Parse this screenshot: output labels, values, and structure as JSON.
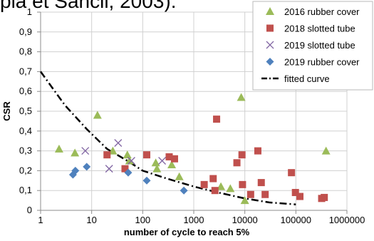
{
  "caption": "pia et Sancil, 2003).",
  "chart_data": {
    "type": "scatter",
    "x_scale": "log",
    "xlim": [
      1,
      1000000
    ],
    "ylim": [
      0,
      1
    ],
    "xlabel": "number of cycle to reach 5%",
    "ylabel": "CSR",
    "x_ticks": [
      "1",
      "10",
      "100",
      "1000",
      "10000",
      "100000",
      "1000000"
    ],
    "x_tick_values": [
      1,
      10,
      100,
      1000,
      10000,
      100000,
      1000000
    ],
    "y_ticks": [
      "0",
      "0,1",
      "0,2",
      "0,3",
      "0,4",
      "0,5",
      "0,6",
      "0,7",
      "0,8",
      "0,9",
      "1"
    ],
    "y_tick_values": [
      0,
      0.1,
      0.2,
      0.3,
      0.4,
      0.5,
      0.6,
      0.7,
      0.8,
      0.9,
      1
    ],
    "grid": true,
    "legend_position": "top-right",
    "series": [
      {
        "name": "2016 rubber cover",
        "marker": "triangle",
        "color": "#9BBB59",
        "points": [
          [
            2.3,
            0.31
          ],
          [
            4.7,
            0.29
          ],
          [
            13,
            0.48
          ],
          [
            26,
            0.3
          ],
          [
            50,
            0.28
          ],
          [
            55,
            0.25
          ],
          [
            180,
            0.24
          ],
          [
            190,
            0.21
          ],
          [
            370,
            0.23
          ],
          [
            520,
            0.17
          ],
          [
            3400,
            0.12
          ],
          [
            5200,
            0.11
          ],
          [
            8500,
            0.57
          ],
          [
            10000,
            0.05
          ],
          [
            390000,
            0.3
          ]
        ]
      },
      {
        "name": "2018 slotted tube",
        "marker": "square",
        "color": "#C0504D",
        "points": [
          [
            20,
            0.28
          ],
          [
            45,
            0.21
          ],
          [
            120,
            0.28
          ],
          [
            330,
            0.27
          ],
          [
            420,
            0.26
          ],
          [
            1600,
            0.13
          ],
          [
            2400,
            0.16
          ],
          [
            2600,
            0.1
          ],
          [
            2800,
            0.46
          ],
          [
            7000,
            0.24
          ],
          [
            8800,
            0.28
          ],
          [
            9000,
            0.13
          ],
          [
            13000,
            0.08
          ],
          [
            18000,
            0.3
          ],
          [
            21000,
            0.14
          ],
          [
            25000,
            0.08
          ],
          [
            82000,
            0.19
          ],
          [
            98000,
            0.09
          ],
          [
            120000,
            0.07
          ],
          [
            320000,
            0.06
          ],
          [
            360000,
            0.065
          ]
        ]
      },
      {
        "name": "2019 slotted tube",
        "marker": "x",
        "color": "#8064A2",
        "points": [
          [
            7.5,
            0.3
          ],
          [
            22,
            0.21
          ],
          [
            33,
            0.34
          ],
          [
            60,
            0.25
          ],
          [
            240,
            0.25
          ]
        ]
      },
      {
        "name": "2019 rubber cover",
        "marker": "diamond",
        "color": "#4F81BD",
        "points": [
          [
            4.3,
            0.18
          ],
          [
            4.8,
            0.2
          ],
          [
            8,
            0.22
          ],
          [
            52,
            0.19
          ],
          [
            120,
            0.15
          ],
          [
            640,
            0.1
          ]
        ]
      }
    ],
    "fitted_curve": {
      "name": "fitted curve",
      "color": "#000000",
      "points": [
        [
          1,
          0.7
        ],
        [
          3,
          0.53
        ],
        [
          8,
          0.41
        ],
        [
          20,
          0.31
        ],
        [
          50,
          0.25
        ],
        [
          100,
          0.2
        ],
        [
          300,
          0.16
        ],
        [
          1000,
          0.12
        ],
        [
          3000,
          0.09
        ],
        [
          10000,
          0.06
        ],
        [
          30000,
          0.04
        ],
        [
          100000,
          0.03
        ]
      ]
    }
  }
}
